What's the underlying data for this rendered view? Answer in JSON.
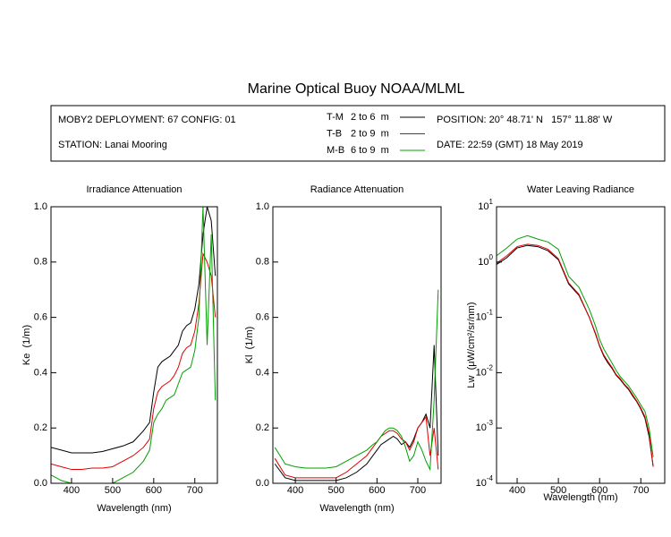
{
  "title": "Marine Optical Buoy NOAA/MLML",
  "header": {
    "deployment": "MOBY2 DEPLOYMENT: 67 CONFIG: 01",
    "station": "STATION: Lanai Mooring",
    "position": "POSITION: 20° 48.71' N   157° 11.88' W",
    "date": "DATE: 22:59 (GMT) 18 May 2019"
  },
  "legend": [
    {
      "name": "T-M",
      "range": "2 to 6  m",
      "color": "#000000"
    },
    {
      "name": "T-B",
      "range": "2 to 9  m",
      "color": "#e00000"
    },
    {
      "name": "M-B",
      "range": "6 to 9  m",
      "color": "#00a000"
    }
  ],
  "chart_data": [
    {
      "type": "line",
      "title": "Irradiance Attenuation",
      "x_label": "Wavelength (nm)",
      "y_label": "Ke  (1/m)",
      "x": [
        350,
        375,
        400,
        425,
        450,
        475,
        500,
        525,
        550,
        575,
        590,
        600,
        610,
        620,
        630,
        640,
        650,
        660,
        670,
        680,
        690,
        700,
        710,
        720,
        730,
        740,
        750
      ],
      "xlim": [
        350,
        755
      ],
      "xticks": [
        400,
        500,
        600,
        700
      ],
      "ylim": [
        0,
        1
      ],
      "yticks": [
        {
          "value": 0,
          "label": "0.0"
        },
        0.2,
        0.4,
        0.6,
        0.8,
        {
          "value": 1,
          "label": "1.0"
        }
      ],
      "series": [
        {
          "color": "#000000",
          "values": [
            0.13,
            0.12,
            0.11,
            0.11,
            0.11,
            0.115,
            0.125,
            0.135,
            0.15,
            0.19,
            0.22,
            0.33,
            0.42,
            0.44,
            0.45,
            0.46,
            0.48,
            0.5,
            0.55,
            0.57,
            0.58,
            0.63,
            0.72,
            0.9,
            1.0,
            0.95,
            0.75
          ]
        },
        {
          "color": "#e00000",
          "values": [
            0.07,
            0.06,
            0.05,
            0.05,
            0.055,
            0.055,
            0.06,
            0.08,
            0.1,
            0.13,
            0.16,
            0.27,
            0.33,
            0.35,
            0.36,
            0.37,
            0.39,
            0.42,
            0.47,
            0.49,
            0.5,
            0.55,
            0.65,
            0.83,
            0.8,
            0.75,
            0.6
          ]
        },
        {
          "color": "#00a000",
          "values": [
            0.03,
            0.01,
            0.0,
            0.0,
            0.0,
            0.0,
            0.0,
            0.02,
            0.04,
            0.08,
            0.12,
            0.22,
            0.25,
            0.27,
            0.3,
            0.31,
            0.32,
            0.36,
            0.4,
            0.41,
            0.42,
            0.48,
            0.6,
            1.0,
            0.5,
            0.9,
            0.3
          ]
        }
      ]
    },
    {
      "type": "line",
      "title": "Radiance Attenuation",
      "x_label": "Wavelength (nm)",
      "y_label": "Kl  (1/m)",
      "x": [
        350,
        375,
        400,
        425,
        450,
        475,
        500,
        525,
        550,
        575,
        590,
        600,
        610,
        620,
        630,
        640,
        650,
        660,
        670,
        680,
        690,
        700,
        710,
        720,
        730,
        740,
        750
      ],
      "xlim": [
        345,
        757
      ],
      "xticks": [
        400,
        500,
        600,
        700
      ],
      "ylim": [
        0,
        1
      ],
      "yticks": [
        {
          "value": 0,
          "label": "0.0"
        },
        0.2,
        0.4,
        0.6,
        0.8,
        {
          "value": 1,
          "label": "1.0"
        }
      ],
      "series": [
        {
          "color": "#000000",
          "values": [
            0.07,
            0.02,
            0.01,
            0.01,
            0.01,
            0.01,
            0.01,
            0.02,
            0.04,
            0.07,
            0.1,
            0.12,
            0.14,
            0.15,
            0.16,
            0.17,
            0.16,
            0.14,
            0.15,
            0.13,
            0.16,
            0.2,
            0.22,
            0.25,
            0.2,
            0.5,
            0.1
          ]
        },
        {
          "color": "#e00000",
          "values": [
            0.09,
            0.03,
            0.02,
            0.02,
            0.02,
            0.02,
            0.02,
            0.04,
            0.07,
            0.1,
            0.13,
            0.15,
            0.17,
            0.18,
            0.19,
            0.19,
            0.18,
            0.16,
            0.15,
            0.12,
            0.15,
            0.2,
            0.22,
            0.24,
            0.1,
            0.2,
            0.05
          ]
        },
        {
          "color": "#00a000",
          "values": [
            0.13,
            0.07,
            0.06,
            0.055,
            0.055,
            0.055,
            0.06,
            0.08,
            0.1,
            0.12,
            0.14,
            0.15,
            0.17,
            0.19,
            0.2,
            0.2,
            0.19,
            0.17,
            0.13,
            0.08,
            0.1,
            0.15,
            0.12,
            0.08,
            0.05,
            0.3,
            0.7
          ]
        }
      ]
    },
    {
      "type": "line",
      "title": "Water Leaving Radiance",
      "x_label": "Wavelength (nm)",
      "y_label": "Lw  (μW/cm²/sr/nm)",
      "log_y": true,
      "x": [
        350,
        375,
        400,
        425,
        450,
        475,
        500,
        525,
        550,
        575,
        590,
        600,
        610,
        620,
        630,
        640,
        650,
        660,
        670,
        680,
        690,
        700,
        710,
        720,
        730,
        740,
        750
      ],
      "xlim": [
        350,
        758
      ],
      "xticks": [
        400,
        500,
        600,
        700
      ],
      "ylim": [
        0.0001,
        10
      ],
      "yticks": [
        {
          "value": 10,
          "label": "10^1"
        },
        {
          "value": 1,
          "label": "10^0"
        },
        {
          "value": 0.1,
          "label": "10^-1"
        },
        {
          "value": 0.01,
          "label": "10^-2"
        },
        {
          "value": 0.001,
          "label": "10^-3"
        },
        {
          "value": 0.0001,
          "label": "10^-4"
        }
      ],
      "series": [
        {
          "color": "#000000",
          "values": [
            0.9,
            1.2,
            1.8,
            2.0,
            1.9,
            1.6,
            1.1,
            0.4,
            0.25,
            0.1,
            0.05,
            0.03,
            0.02,
            0.015,
            0.012,
            0.009,
            0.0075,
            0.006,
            0.005,
            0.0038,
            0.003,
            0.0022,
            0.0015,
            0.0007,
            0.0002,
            null,
            null
          ]
        },
        {
          "color": "#e00000",
          "values": [
            0.95,
            1.3,
            1.9,
            2.1,
            2.0,
            1.7,
            1.15,
            0.42,
            0.26,
            0.1,
            0.052,
            0.031,
            0.021,
            0.016,
            0.0125,
            0.0093,
            0.0078,
            0.0062,
            0.0052,
            0.004,
            0.0031,
            0.0023,
            0.0016,
            0.0008,
            0.0002,
            null,
            null
          ]
        },
        {
          "color": "#00a000",
          "values": [
            1.3,
            1.8,
            2.6,
            3.0,
            2.6,
            2.3,
            1.7,
            0.55,
            0.35,
            0.14,
            0.07,
            0.04,
            0.027,
            0.02,
            0.015,
            0.011,
            0.0085,
            0.007,
            0.0058,
            0.0045,
            0.0035,
            0.0026,
            0.002,
            0.001,
            0.0003,
            null,
            null
          ]
        }
      ]
    }
  ]
}
